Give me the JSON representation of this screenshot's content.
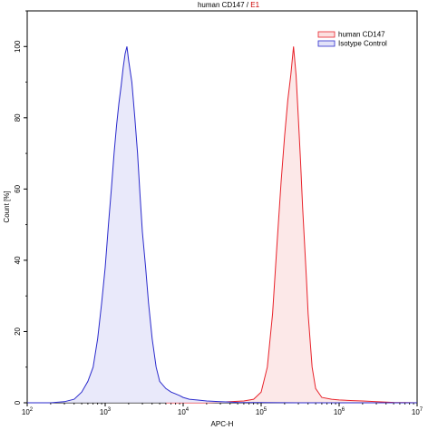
{
  "chart_data": {
    "type": "area",
    "title": "human CD147",
    "title_separator": " / ",
    "title_highlight": "E1",
    "title_highlight_color": "#cc0000",
    "xlabel": "APC-H",
    "ylabel": "Count [%]",
    "x_scale": "log",
    "xlim": [
      100,
      10000000
    ],
    "ylim": [
      0,
      110
    ],
    "x_ticks": [
      {
        "value": 100,
        "base": "10",
        "exp": "2"
      },
      {
        "value": 1000,
        "base": "10",
        "exp": "3"
      },
      {
        "value": 10000,
        "base": "10",
        "exp": "4"
      },
      {
        "value": 100000,
        "base": "10",
        "exp": "5"
      },
      {
        "value": 1000000,
        "base": "10",
        "exp": "6"
      },
      {
        "value": 10000000,
        "base": "10",
        "exp": "7"
      }
    ],
    "y_ticks": [
      "0",
      "20",
      "40",
      "60",
      "80",
      "100"
    ],
    "y_tick_values": [
      0,
      20,
      40,
      60,
      80,
      100
    ],
    "legend_position": "top-right",
    "series": [
      {
        "name": "human CD147",
        "stroke": "#e8222a",
        "fill": "#fbe0e0",
        "x": [
          6000,
          10000,
          20000,
          40000,
          60000,
          80000,
          100000,
          120000,
          140000,
          160000,
          180000,
          200000,
          220000,
          240000,
          260000,
          280000,
          300000,
          320000,
          340000,
          360000,
          380000,
          400000,
          450000,
          500000,
          600000,
          800000,
          1000000,
          1500000,
          2000000,
          3000000,
          4000000,
          5000000,
          7000000,
          10000000
        ],
        "y": [
          0,
          0,
          0,
          0.3,
          0.5,
          1,
          3,
          10,
          25,
          45,
          62,
          75,
          85,
          92,
          100,
          92,
          80,
          68,
          55,
          45,
          35,
          25,
          10,
          4,
          1.5,
          1,
          0.8,
          0.6,
          0.5,
          0.3,
          0.2,
          0.1,
          0.05,
          0
        ]
      },
      {
        "name": "Isotype Control",
        "stroke": "#2a2acc",
        "fill": "#e2e2f8",
        "x": [
          100,
          200,
          300,
          400,
          500,
          600,
          700,
          800,
          900,
          1000,
          1100,
          1200,
          1300,
          1400,
          1500,
          1600,
          1700,
          1800,
          1900,
          2000,
          2200,
          2400,
          2600,
          2800,
          3000,
          3300,
          3600,
          4000,
          4500,
          5000,
          6000,
          7000,
          8000,
          9000,
          10000,
          12000,
          15000,
          20000,
          30000,
          50000,
          100000,
          300000,
          1000000,
          10000000
        ],
        "y": [
          0,
          0,
          0.3,
          1,
          3,
          6,
          10,
          18,
          28,
          38,
          50,
          60,
          70,
          78,
          84,
          89,
          94,
          98,
          100,
          96,
          90,
          80,
          70,
          58,
          48,
          38,
          28,
          18,
          10,
          6,
          4,
          3,
          2.5,
          2,
          1.5,
          1,
          0.8,
          0.5,
          0.3,
          0.1,
          0.05,
          0,
          0,
          0
        ]
      }
    ]
  }
}
